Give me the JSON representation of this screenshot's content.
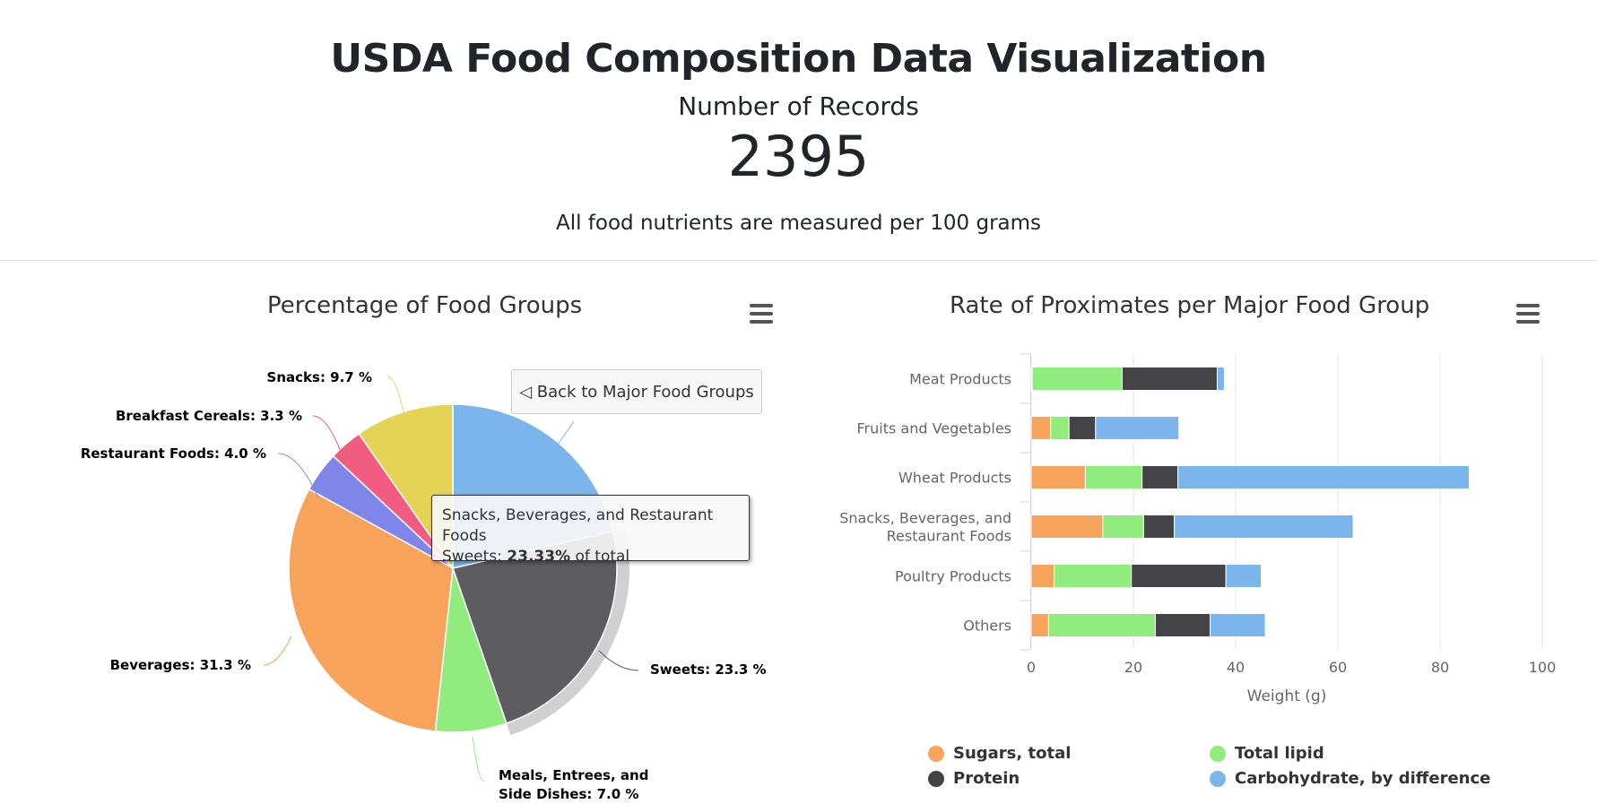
{
  "header": {
    "title": "USDA Food Composition Data Visualization",
    "records_label": "Number of Records",
    "records_count": "2395",
    "note": "All food nutrients are measured per 100 grams"
  },
  "pie": {
    "back_button": "◁ Back to Major Food Groups",
    "tooltip": {
      "line1": "Snacks, Beverages, and Restaurant Foods",
      "prefix": "Sweets: ",
      "value": "23.33%",
      "suffix": " of total"
    }
  },
  "chart_data": [
    {
      "type": "pie",
      "title": "Percentage of Food Groups",
      "slices": [
        {
          "name": "Snacks",
          "label": "Snacks: 9.7 %",
          "value": 9.7,
          "color": "#e4d354"
        },
        {
          "name": "Sweets",
          "label": "Sweets: 23.3 %",
          "value": 23.3,
          "color": "#5c5c61",
          "sliced": true
        },
        {
          "name": "Meals, Entrees, and Side Dishes",
          "label": "Meals, Entrees, and Side Dishes: 7.0 %",
          "label_lines": [
            "Meals, Entrees, and",
            "Side Dishes: 7.0 %"
          ],
          "value": 7.0,
          "color": "#90ed7d"
        },
        {
          "name": "Beverages",
          "label": "Beverages: 31.3 %",
          "value": 31.3,
          "color": "#f7a35c"
        },
        {
          "name": "Restaurant Foods",
          "label": "Restaurant Foods: 4.0 %",
          "value": 4.0,
          "color": "#8085e9"
        },
        {
          "name": "Breakfast Cereals",
          "label": "Breakfast Cereals: 3.3 %",
          "value": 3.3,
          "color": "#f15c80"
        },
        {
          "name": "Snacks",
          "label": "Snacks: 9.7 %",
          "value": 9.7,
          "color": "#e4d354"
        }
      ],
      "slice_order_note": ""
    },
    {
      "type": "bar",
      "stacked": true,
      "orientation": "horizontal",
      "title": "Rate of Proximates per Major Food Group",
      "categories": [
        "Meat Products",
        "Fruits and Vegetables",
        "Wheat Products",
        "Snacks, Beverages, and Restaurant Foods",
        "Poultry Products",
        "Others"
      ],
      "xlabel": "Weight (g)",
      "xlim": [
        0,
        100
      ],
      "xticks": [
        "0",
        "20",
        "40",
        "60",
        "80",
        "100"
      ],
      "grid": true,
      "series": [
        {
          "name": "Sugars, total",
          "color": "#f7a35c",
          "values": [
            0.2,
            3.8,
            10.6,
            14.0,
            4.5,
            3.4
          ]
        },
        {
          "name": "Total lipid",
          "color": "#90ed7d",
          "values": [
            17.6,
            3.6,
            11.1,
            8.0,
            15.1,
            20.9
          ]
        },
        {
          "name": "Protein",
          "color": "#434348",
          "values": [
            18.6,
            5.2,
            7.0,
            6.0,
            18.5,
            10.7
          ]
        },
        {
          "name": "Carbohydrate, by difference",
          "color": "#7cb5ec",
          "values": [
            1.4,
            16.3,
            57.0,
            35.0,
            6.9,
            10.8
          ]
        }
      ],
      "legend_position": "bottom"
    }
  ]
}
